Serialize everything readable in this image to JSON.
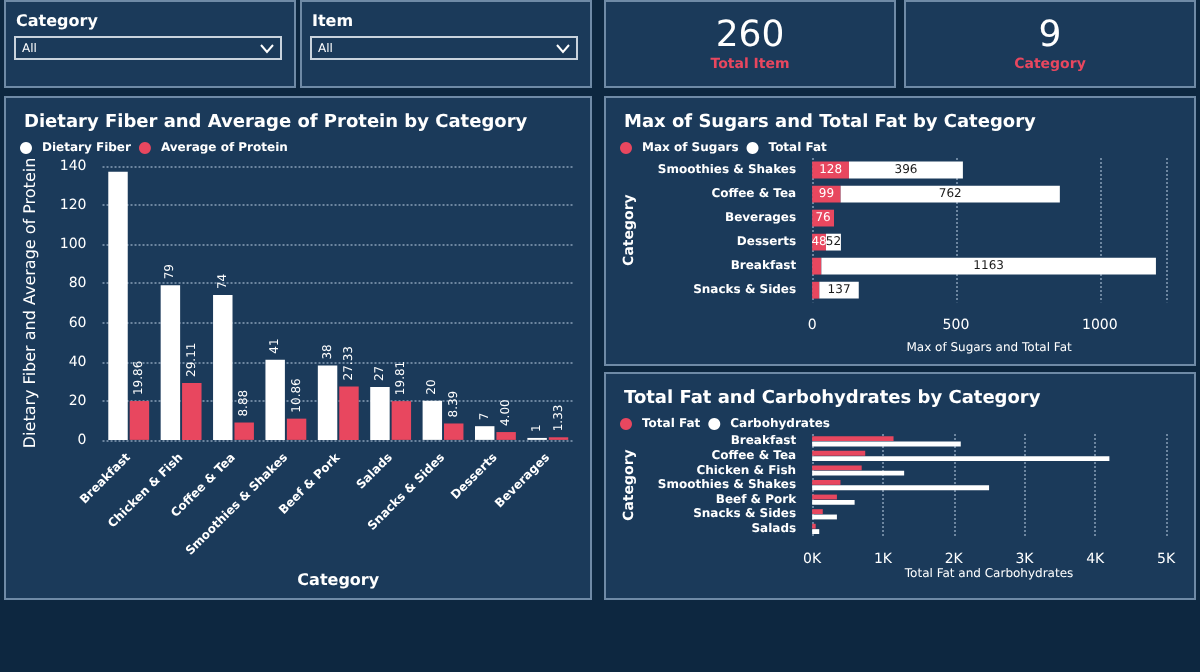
{
  "chart_data": [
    {
      "type": "other",
      "title": "Category",
      "annotations": [
        "All"
      ]
    },
    {
      "type": "other",
      "title": "Item",
      "annotations": [
        "All"
      ]
    },
    {
      "type": "other",
      "annotations": [
        "260",
        "Total Item"
      ]
    },
    {
      "type": "other",
      "annotations": [
        "9",
        "Category"
      ]
    },
    {
      "type": "bar",
      "title": "Dietary Fiber and Average of Protein by Category",
      "xlabel": "Category",
      "ylabel": "Dietary Fiber and Average of Protein",
      "categories": [
        "Breakfast",
        "Chicken & Fish",
        "Coffee & Tea",
        "Smoothies & Shakes",
        "Beef & Pork",
        "Salads",
        "Snacks & Sides",
        "Desserts",
        "Beverages"
      ],
      "series": [
        {
          "name": "Dietary Fiber",
          "color": "#ffffff",
          "values": [
            137,
            79,
            74,
            41,
            38,
            27,
            20,
            7,
            1
          ],
          "value_labels": [
            null,
            "79",
            "74",
            "41",
            "38",
            "27",
            "20",
            "7",
            "1"
          ]
        },
        {
          "name": "Average of Protein",
          "color": "#e8475f",
          "values": [
            19.86,
            29.11,
            8.88,
            10.86,
            27.33,
            19.81,
            8.39,
            4.0,
            1.33
          ],
          "value_labels": [
            "19.86",
            "29.11",
            "8.88",
            "10.86",
            "27.33",
            "19.81",
            "8.39",
            "4.00",
            "1.33"
          ]
        }
      ],
      "ylim": [
        0,
        140
      ],
      "yticks": [
        0,
        20,
        40,
        60,
        80,
        100,
        120,
        140
      ],
      "grid": "y",
      "legend": "top left"
    },
    {
      "type": "bar",
      "orientation": "horizontal",
      "stacked": true,
      "title": "Max of Sugars and Total Fat by Category",
      "xlabel": "Max of Sugars and Total Fat",
      "ylabel": "Category",
      "categories": [
        "Smoothies & Shakes",
        "Coffee & Tea",
        "Beverages",
        "Desserts",
        "Breakfast",
        "Snacks & Sides"
      ],
      "series": [
        {
          "name": "Max of Sugars",
          "color": "#e8475f",
          "values": [
            128,
            99,
            76,
            48,
            32,
            25
          ],
          "value_labels": [
            "128",
            "99",
            "76",
            "48",
            null,
            null
          ]
        },
        {
          "name": "Total Fat",
          "color": "#ffffff",
          "values": [
            396,
            762,
            null,
            52,
            1163,
            137
          ],
          "value_labels": [
            "396",
            "762",
            null,
            "52",
            "1163",
            "137"
          ]
        }
      ],
      "xlim": [
        0,
        1230
      ],
      "xticks": [
        0,
        500,
        1000
      ],
      "grid": "x",
      "legend": "top left"
    },
    {
      "type": "bar",
      "orientation": "horizontal",
      "title": "Total Fat and Carbohydrates by Category",
      "xlabel": "Total Fat and Carbohydrates",
      "ylabel": "Category",
      "categories": [
        "Breakfast",
        "Coffee & Tea",
        "Chicken & Fish",
        "Smoothies & Shakes",
        "Beef & Pork",
        "Snacks & Sides",
        "Salads"
      ],
      "series": [
        {
          "name": "Total Fat",
          "color": "#e8475f",
          "values": [
            1150,
            750,
            700,
            400,
            350,
            150,
            50
          ]
        },
        {
          "name": "Carbohydrates",
          "color": "#ffffff",
          "values": [
            2100,
            4200,
            1300,
            2500,
            600,
            350,
            100
          ]
        }
      ],
      "xlim": [
        0,
        5000
      ],
      "xticks": [
        {
          "value": 0,
          "label": "0K"
        },
        {
          "value": 1000,
          "label": "1K"
        },
        {
          "value": 2000,
          "label": "2K"
        },
        {
          "value": 3000,
          "label": "3K"
        },
        {
          "value": 4000,
          "label": "4K"
        },
        {
          "value": 5000,
          "label": "5K"
        }
      ],
      "grid": "x",
      "legend": "top left"
    }
  ]
}
